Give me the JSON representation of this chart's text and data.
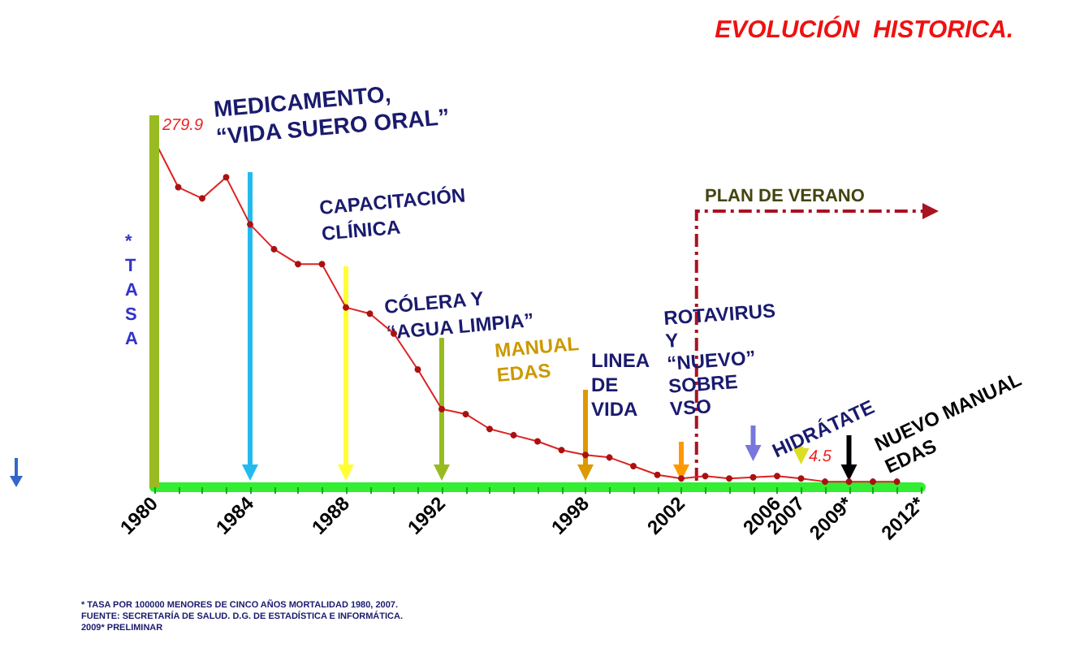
{
  "chart_data": {
    "type": "line",
    "title": "EVOLUCIÓN  HISTORICA.",
    "ylabel": "* TASA",
    "categories": [
      "1980",
      null,
      null,
      null,
      "1984",
      null,
      null,
      null,
      "1988",
      null,
      null,
      null,
      "1992",
      null,
      null,
      null,
      null,
      null,
      "1998",
      null,
      null,
      null,
      "2002",
      null,
      null,
      null,
      "2006",
      "2007",
      null,
      "2009*",
      null,
      null,
      "2012*"
    ],
    "values": [
      279.9,
      242,
      233,
      250,
      212,
      192,
      180,
      180,
      145,
      140,
      124,
      95,
      63,
      59,
      47,
      42,
      37,
      30,
      26,
      24,
      17,
      10,
      7,
      9,
      7,
      8,
      9,
      7,
      4.5,
      4.5,
      4.5,
      4.5,
      null
    ],
    "value_labels": [
      "279.9",
      null,
      null,
      null,
      null,
      null,
      null,
      null,
      null,
      null,
      null,
      null,
      null,
      null,
      null,
      null,
      null,
      null,
      null,
      null,
      null,
      null,
      null,
      null,
      null,
      null,
      null,
      null,
      "4.5",
      null,
      null,
      null,
      null
    ],
    "color": "#dd2222",
    "marker": "circle",
    "ref_lines": [
      {
        "axis": "x",
        "value": "1980",
        "color": "#99bb22"
      }
    ],
    "annotations": [
      "MEDICAMENTO,\n“VIDA SUERO ORAL”",
      "CAPACITACIÓN\nCLÍNICA",
      "CÓLERA Y\n“AGUA LIMPIA”",
      "MANUAL\nEDAS",
      "LINEA\nDE\nVIDA",
      "ROTAVIRUS\nY\n“NUEVO”\nSOBRE\nVSO",
      "HIDRÁTATE",
      "NUEVO MANUAL\nEDAS",
      "PLAN DE VERANO",
      "* TASA POR 100000 MENORES DE CINCO AÑOS MORTALIDAD 1980, 2007.",
      "FUENTE: SECRETARÍA DE SALUD. D.G. DE ESTADÍSTICA E INFORMÁTICA.",
      "2009* PRELIMINAR"
    ]
  }
}
